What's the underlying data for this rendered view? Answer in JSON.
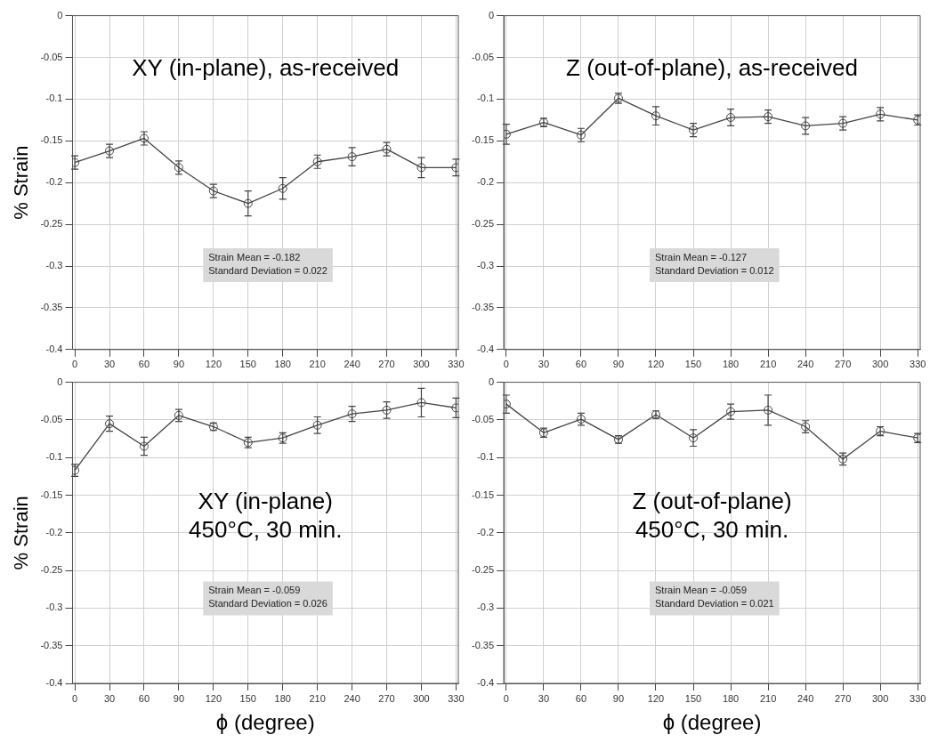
{
  "chart_data": [
    {
      "type": "line",
      "title": "XY (in-plane), as-received",
      "ylabel": "% Strain",
      "annotations": [
        "Strain Mean = -0.182",
        "Standard Deviation = 0.022"
      ],
      "x": [
        0,
        30,
        60,
        90,
        120,
        150,
        180,
        210,
        240,
        270,
        300,
        330
      ],
      "xlim": [
        -2,
        332
      ],
      "xticks": [
        0,
        30,
        60,
        90,
        120,
        150,
        180,
        210,
        240,
        270,
        300,
        330
      ],
      "ylim": [
        -0.4,
        0
      ],
      "yticks": [
        -0.4,
        -0.35,
        -0.3,
        -0.25,
        -0.2,
        -0.15,
        -0.1,
        -0.05,
        0
      ],
      "grid": true,
      "marker": "circle",
      "line_style": "solid",
      "series": [
        {
          "color": "#444444",
          "values": [
            -0.176,
            -0.162,
            -0.147,
            -0.182,
            -0.21,
            -0.225,
            -0.207,
            -0.175,
            -0.169,
            -0.16,
            -0.182,
            -0.182
          ],
          "errors": [
            0.008,
            0.008,
            0.008,
            0.008,
            0.008,
            0.015,
            0.013,
            0.008,
            0.011,
            0.008,
            0.012,
            0.01
          ]
        }
      ]
    },
    {
      "type": "line",
      "title": "Z (out-of-plane), as-received",
      "annotations": [
        "Strain Mean = -0.127",
        "Standard Deviation = 0.012"
      ],
      "x": [
        0,
        30,
        60,
        90,
        120,
        150,
        180,
        210,
        240,
        270,
        300,
        330
      ],
      "xlim": [
        -2,
        332
      ],
      "xticks": [
        0,
        30,
        60,
        90,
        120,
        150,
        180,
        210,
        240,
        270,
        300,
        330
      ],
      "ylim": [
        -0.4,
        0
      ],
      "yticks": [
        -0.4,
        -0.35,
        -0.3,
        -0.25,
        -0.2,
        -0.15,
        -0.1,
        -0.05,
        0
      ],
      "grid": true,
      "marker": "circle",
      "line_style": "solid",
      "series": [
        {
          "color": "#444444",
          "values": [
            -0.142,
            -0.128,
            -0.143,
            -0.099,
            -0.12,
            -0.137,
            -0.122,
            -0.121,
            -0.132,
            -0.129,
            -0.118,
            -0.125
          ],
          "errors": [
            0.012,
            0.005,
            0.008,
            0.006,
            0.011,
            0.008,
            0.01,
            0.008,
            0.01,
            0.008,
            0.008,
            0.006
          ]
        }
      ]
    },
    {
      "type": "line",
      "title": "XY (in-plane)\n450°C, 30 min.",
      "xlabel": "ϕ (degree)",
      "ylabel": "% Strain",
      "annotations": [
        "Strain Mean = -0.059",
        "Standard Deviation = 0.026"
      ],
      "x": [
        0,
        30,
        60,
        90,
        120,
        150,
        180,
        210,
        240,
        270,
        300,
        330
      ],
      "xlim": [
        -2,
        332
      ],
      "xticks": [
        0,
        30,
        60,
        90,
        120,
        150,
        180,
        210,
        240,
        270,
        300,
        330
      ],
      "ylim": [
        -0.4,
        0
      ],
      "yticks": [
        -0.4,
        -0.35,
        -0.3,
        -0.25,
        -0.2,
        -0.15,
        -0.1,
        -0.05,
        0
      ],
      "grid": true,
      "marker": "circle",
      "line_style": "solid",
      "series": [
        {
          "color": "#444444",
          "values": [
            -0.117,
            -0.055,
            -0.085,
            -0.044,
            -0.059,
            -0.08,
            -0.074,
            -0.057,
            -0.042,
            -0.037,
            -0.027,
            -0.034
          ],
          "errors": [
            0.008,
            0.01,
            0.012,
            0.008,
            0.005,
            0.007,
            0.007,
            0.011,
            0.01,
            0.011,
            0.019,
            0.013
          ]
        }
      ]
    },
    {
      "type": "line",
      "title": "Z (out-of-plane)\n450°C, 30 min.",
      "xlabel": "ϕ (degree)",
      "annotations": [
        "Strain Mean = -0.059",
        "Standard Deviation = 0.021"
      ],
      "x": [
        0,
        30,
        60,
        90,
        120,
        150,
        180,
        210,
        240,
        270,
        300,
        330
      ],
      "xlim": [
        -2,
        332
      ],
      "xticks": [
        0,
        30,
        60,
        90,
        120,
        150,
        180,
        210,
        240,
        270,
        300,
        330
      ],
      "ylim": [
        -0.4,
        0
      ],
      "yticks": [
        -0.4,
        -0.35,
        -0.3,
        -0.25,
        -0.2,
        -0.15,
        -0.1,
        -0.05,
        0
      ],
      "grid": true,
      "marker": "circle",
      "line_style": "solid",
      "series": [
        {
          "color": "#444444",
          "values": [
            -0.029,
            -0.067,
            -0.049,
            -0.076,
            -0.043,
            -0.074,
            -0.039,
            -0.037,
            -0.059,
            -0.102,
            -0.065,
            -0.074
          ],
          "errors": [
            0.012,
            0.006,
            0.008,
            0.005,
            0.005,
            0.011,
            0.01,
            0.02,
            0.008,
            0.008,
            0.006,
            0.006
          ]
        }
      ]
    }
  ]
}
